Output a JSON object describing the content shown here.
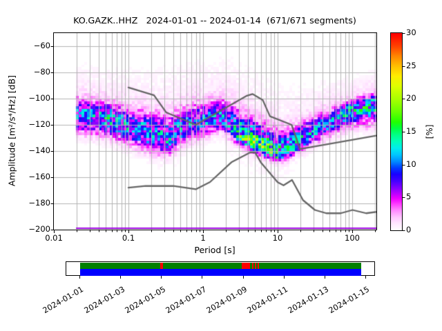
{
  "title": "KO.GAZK..HHZ   2024-01-01 -- 2024-01-14  (671/671 segments)",
  "y_axis": {
    "label": "Amplitude [m²/s⁴/Hz] [dB]",
    "tick_labels": [
      "−60",
      "−80",
      "−100",
      "−120",
      "−140",
      "−160",
      "−180",
      "−200"
    ],
    "tick_values": [
      -60,
      -80,
      -100,
      -120,
      -140,
      -160,
      -180,
      -200
    ]
  },
  "x_axis": {
    "label": "Period [s]",
    "tick_labels": [
      "0.01",
      "0.1",
      "1",
      "10",
      "100"
    ],
    "tick_values": [
      0.01,
      0.1,
      1,
      10,
      100
    ]
  },
  "colorbar": {
    "label": "[%]",
    "tick_labels": [
      "0",
      "5",
      "10",
      "15",
      "20",
      "25",
      "30"
    ],
    "tick_values": [
      0,
      5,
      10,
      15,
      20,
      25,
      30
    ]
  },
  "chart_data": {
    "type": "heatmap",
    "description": "ObsPy PPSD probabilistic power spectral density for station KO.GAZK..HHZ, 2024-01-01 to 2024-01-14, 671 of 671 segments",
    "x_scale": "log",
    "xlim": [
      0.01,
      211
    ],
    "ylim": [
      -200,
      -50
    ],
    "grid": true,
    "period_range_with_data": [
      0.0198,
      211
    ],
    "colorbar_range_pct": [
      0,
      30
    ],
    "colormap_stops": [
      [
        0,
        "#ffffff"
      ],
      [
        1,
        "#ffe8ff"
      ],
      [
        2,
        "#ffc4ff"
      ],
      [
        3,
        "#ff8aff"
      ],
      [
        4,
        "#ff3aff"
      ],
      [
        4.8,
        "#f000ff"
      ],
      [
        5.5,
        "#c000ff"
      ],
      [
        6.5,
        "#8000ff"
      ],
      [
        7.5,
        "#4400ff"
      ],
      [
        8.5,
        "#1a00ff"
      ],
      [
        9.5,
        "#0040ff"
      ],
      [
        10.5,
        "#0090ff"
      ],
      [
        11.5,
        "#00c8ff"
      ],
      [
        12.5,
        "#00eeee"
      ],
      [
        13.5,
        "#00ffbb"
      ],
      [
        14.5,
        "#00ff88"
      ],
      [
        15.5,
        "#00ff44"
      ],
      [
        16.5,
        "#22ff00"
      ],
      [
        18,
        "#66ff00"
      ],
      [
        20,
        "#aaff00"
      ],
      [
        22,
        "#e0ff00"
      ],
      [
        23.5,
        "#ffee00"
      ],
      [
        25,
        "#ffc000"
      ],
      [
        26.5,
        "#ff8800"
      ],
      [
        28,
        "#ff4400"
      ],
      [
        30,
        "#ff0000"
      ]
    ],
    "ppsd_distribution": [
      {
        "period": 0.02,
        "mode_db": -112,
        "spread_below": 8,
        "spread_above": 7,
        "peak_pct": 9
      },
      {
        "period": 0.05,
        "mode_db": -115,
        "spread_below": 8,
        "spread_above": 7,
        "peak_pct": 10
      },
      {
        "period": 0.1,
        "mode_db": -121,
        "spread_below": 8,
        "spread_above": 8,
        "peak_pct": 9
      },
      {
        "period": 0.2,
        "mode_db": -127,
        "spread_below": 8,
        "spread_above": 9,
        "peak_pct": 9
      },
      {
        "period": 0.35,
        "mode_db": -131,
        "spread_below": 7,
        "spread_above": 10,
        "peak_pct": 9
      },
      {
        "period": 0.6,
        "mode_db": -121,
        "spread_below": 7,
        "spread_above": 9,
        "peak_pct": 8
      },
      {
        "period": 1.0,
        "mode_db": -117,
        "spread_below": 7,
        "spread_above": 8,
        "peak_pct": 8
      },
      {
        "period": 1.8,
        "mode_db": -114,
        "spread_below": 6,
        "spread_above": 8,
        "peak_pct": 8
      },
      {
        "period": 2.6,
        "mode_db": -124,
        "spread_below": 5,
        "spread_above": 10,
        "peak_pct": 10
      },
      {
        "period": 3.5,
        "mode_db": -130,
        "spread_below": 4,
        "spread_above": 10,
        "peak_pct": 13
      },
      {
        "period": 5.0,
        "mode_db": -135,
        "spread_below": 3.5,
        "spread_above": 10,
        "peak_pct": 15
      },
      {
        "period": 7.0,
        "mode_db": -139,
        "spread_below": 3.5,
        "spread_above": 10,
        "peak_pct": 14
      },
      {
        "period": 9.5,
        "mode_db": -143,
        "spread_below": 3,
        "spread_above": 10,
        "peak_pct": 12
      },
      {
        "period": 13.0,
        "mode_db": -141,
        "spread_below": 3.5,
        "spread_above": 9,
        "peak_pct": 11
      },
      {
        "period": 18.0,
        "mode_db": -135,
        "spread_below": 4,
        "spread_above": 8,
        "peak_pct": 10
      },
      {
        "period": 25.0,
        "mode_db": -129,
        "spread_below": 5,
        "spread_above": 7,
        "peak_pct": 9
      },
      {
        "period": 40.0,
        "mode_db": -121,
        "spread_below": 6,
        "spread_above": 6,
        "peak_pct": 8
      },
      {
        "period": 65.0,
        "mode_db": -114,
        "spread_below": 7,
        "spread_above": 5,
        "peak_pct": 9
      },
      {
        "period": 100,
        "mode_db": -108,
        "spread_below": 8,
        "spread_above": 4,
        "peak_pct": 10
      },
      {
        "period": 150,
        "mode_db": -105,
        "spread_below": 9,
        "spread_above": 4,
        "peak_pct": 11
      },
      {
        "period": 211,
        "mode_db": -103,
        "spread_below": 9,
        "spread_above": 4,
        "peak_pct": 11
      }
    ],
    "noise_models": {
      "color": "#666666",
      "nhnm": [
        [
          0.1,
          -91.5
        ],
        [
          0.22,
          -97.4
        ],
        [
          0.32,
          -110.5
        ],
        [
          0.8,
          -120.0
        ],
        [
          3.8,
          -98.0
        ],
        [
          4.6,
          -96.5
        ],
        [
          6.3,
          -101.0
        ],
        [
          7.9,
          -113.5
        ],
        [
          15.4,
          -120.0
        ],
        [
          20.0,
          -138.5
        ],
        [
          354.8,
          -126.0
        ]
      ],
      "nlnm": [
        [
          0.1,
          -168.0
        ],
        [
          0.17,
          -166.7
        ],
        [
          0.4,
          -166.7
        ],
        [
          0.8,
          -169.2
        ],
        [
          1.24,
          -163.7
        ],
        [
          2.4,
          -148.6
        ],
        [
          4.3,
          -141.1
        ],
        [
          5.0,
          -141.1
        ],
        [
          6.0,
          -149.0
        ],
        [
          10.0,
          -163.8
        ],
        [
          12.0,
          -166.2
        ],
        [
          15.6,
          -162.1
        ],
        [
          21.9,
          -177.5
        ],
        [
          31.6,
          -185.0
        ],
        [
          45.0,
          -187.5
        ],
        [
          70.0,
          -187.5
        ],
        [
          101.0,
          -185.0
        ],
        [
          154.0,
          -187.5
        ],
        [
          328.0,
          -185.0
        ]
      ]
    },
    "baseline_marker": {
      "color": "#9900dd",
      "db": -200
    },
    "availability": {
      "date_tick_labels": [
        "2024-01-01",
        "2024-01-03",
        "2024-01-05",
        "2024-01-07",
        "2024-01-09",
        "2024-01-11",
        "2024-01-13",
        "2024-01-15"
      ],
      "days_per_tick": 2,
      "coverage_days": [
        0.03,
        13.8
      ],
      "gap_days_red": [
        [
          3.97,
          4.1
        ],
        [
          7.95,
          8.35
        ],
        [
          8.45,
          8.53
        ],
        [
          8.59,
          8.66
        ],
        [
          8.72,
          8.79
        ]
      ],
      "colors": {
        "coverage_top": "#008000",
        "coverage_bottom": "#0000ff",
        "gap": "#ff0000",
        "frame": "#ffffff"
      }
    }
  }
}
